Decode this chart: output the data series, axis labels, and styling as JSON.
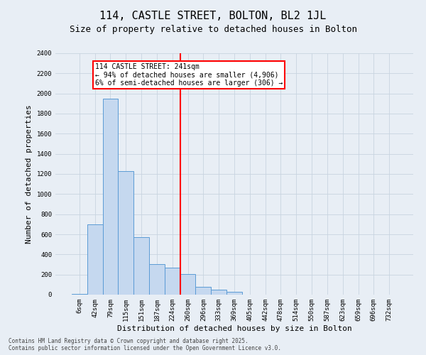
{
  "title": "114, CASTLE STREET, BOLTON, BL2 1JL",
  "subtitle": "Size of property relative to detached houses in Bolton",
  "xlabel": "Distribution of detached houses by size in Bolton",
  "ylabel": "Number of detached properties",
  "bar_color": "#c5d8ef",
  "bar_edge_color": "#5b9bd5",
  "categories": [
    "6sqm",
    "42sqm",
    "79sqm",
    "115sqm",
    "151sqm",
    "187sqm",
    "224sqm",
    "260sqm",
    "296sqm",
    "333sqm",
    "369sqm",
    "405sqm",
    "442sqm",
    "478sqm",
    "514sqm",
    "550sqm",
    "587sqm",
    "623sqm",
    "659sqm",
    "696sqm",
    "732sqm"
  ],
  "values": [
    10,
    700,
    1950,
    1230,
    575,
    305,
    270,
    205,
    80,
    50,
    30,
    0,
    0,
    0,
    0,
    0,
    0,
    0,
    0,
    0,
    0
  ],
  "ylim": [
    0,
    2400
  ],
  "yticks": [
    0,
    200,
    400,
    600,
    800,
    1000,
    1200,
    1400,
    1600,
    1800,
    2000,
    2200,
    2400
  ],
  "vline_index": 7.0,
  "vline_color": "red",
  "annotation_text": "114 CASTLE STREET: 241sqm\n← 94% of detached houses are smaller (4,906)\n6% of semi-detached houses are larger (306) →",
  "annotation_box_color": "white",
  "annotation_box_edge_color": "red",
  "footer_line1": "Contains HM Land Registry data © Crown copyright and database right 2025.",
  "footer_line2": "Contains public sector information licensed under the Open Government Licence v3.0.",
  "background_color": "#e8eef5",
  "plot_bg_color": "#e8eef5",
  "title_fontsize": 11,
  "subtitle_fontsize": 9,
  "tick_fontsize": 6.5,
  "ylabel_fontsize": 8,
  "xlabel_fontsize": 8,
  "annot_fontsize": 7,
  "footer_fontsize": 5.5
}
